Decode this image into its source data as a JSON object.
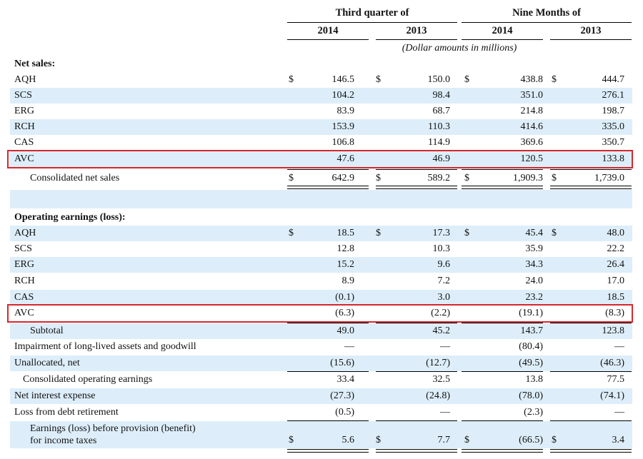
{
  "header": {
    "group1": "Third quarter of",
    "group2": "Nine Months of",
    "years": [
      "2014",
      "2013",
      "2014",
      "2013"
    ],
    "note": "(Dollar amounts in millions)"
  },
  "net_sales": {
    "heading": "Net sales:",
    "rows": [
      {
        "label": "AQH",
        "values": [
          "146.5",
          "150.0",
          "438.8",
          "444.7"
        ],
        "dollar": true
      },
      {
        "label": "SCS",
        "values": [
          "104.2",
          "98.4",
          "351.0",
          "276.1"
        ]
      },
      {
        "label": "ERG",
        "values": [
          "83.9",
          "68.7",
          "214.8",
          "198.7"
        ]
      },
      {
        "label": "RCH",
        "values": [
          "153.9",
          "110.3",
          "414.6",
          "335.0"
        ]
      },
      {
        "label": "CAS",
        "values": [
          "106.8",
          "114.9",
          "369.6",
          "350.7"
        ]
      },
      {
        "label": "AVC",
        "values": [
          "47.6",
          "46.9",
          "120.5",
          "133.8"
        ],
        "highlighted": true
      }
    ],
    "total": {
      "label": "Consolidated net sales",
      "values": [
        "642.9",
        "589.2",
        "1,909.3",
        "1,739.0"
      ],
      "dollar": true
    }
  },
  "operating": {
    "heading": "Operating earnings (loss):",
    "rows": [
      {
        "label": "AQH",
        "values": [
          "18.5",
          "17.3",
          "45.4",
          "48.0"
        ],
        "dollar": true
      },
      {
        "label": "SCS",
        "values": [
          "12.8",
          "10.3",
          "35.9",
          "22.2"
        ]
      },
      {
        "label": "ERG",
        "values": [
          "15.2",
          "9.6",
          "34.3",
          "26.4"
        ]
      },
      {
        "label": "RCH",
        "values": [
          "8.9",
          "7.2",
          "24.0",
          "17.0"
        ]
      },
      {
        "label": "CAS",
        "values": [
          "(0.1)",
          "3.0",
          "23.2",
          "18.5"
        ]
      },
      {
        "label": "AVC",
        "values": [
          "(6.3)",
          "(2.2)",
          "(19.1)",
          "(8.3)"
        ],
        "highlighted": true
      }
    ],
    "subtotal": {
      "label": "Subtotal",
      "values": [
        "49.0",
        "45.2",
        "143.7",
        "123.8"
      ]
    },
    "impairment": {
      "label": "Impairment of long-lived assets and goodwill",
      "values": [
        "—",
        "—",
        "(80.4)",
        "—"
      ]
    },
    "unallocated": {
      "label": "Unallocated, net",
      "values": [
        "(15.6)",
        "(12.7)",
        "(49.5)",
        "(46.3)"
      ]
    },
    "consolidated": {
      "label": "Consolidated operating earnings",
      "values": [
        "33.4",
        "32.5",
        "13.8",
        "77.5"
      ]
    },
    "interest": {
      "label": "Net interest expense",
      "values": [
        "(27.3)",
        "(24.8)",
        "(78.0)",
        "(74.1)"
      ]
    },
    "debt": {
      "label": "Loss from debt retirement",
      "values": [
        "(0.5)",
        "—",
        "(2.3)",
        "—"
      ]
    },
    "earnings": {
      "label_line1": "Earnings (loss) before provision (benefit)",
      "label_line2": "for income taxes",
      "values": [
        "5.6",
        "7.7",
        "(66.5)",
        "3.4"
      ],
      "dollar": true
    }
  },
  "currency_symbol": "$",
  "colors": {
    "row_shade": "#ddeefa",
    "highlight_border": "#d8262c"
  }
}
